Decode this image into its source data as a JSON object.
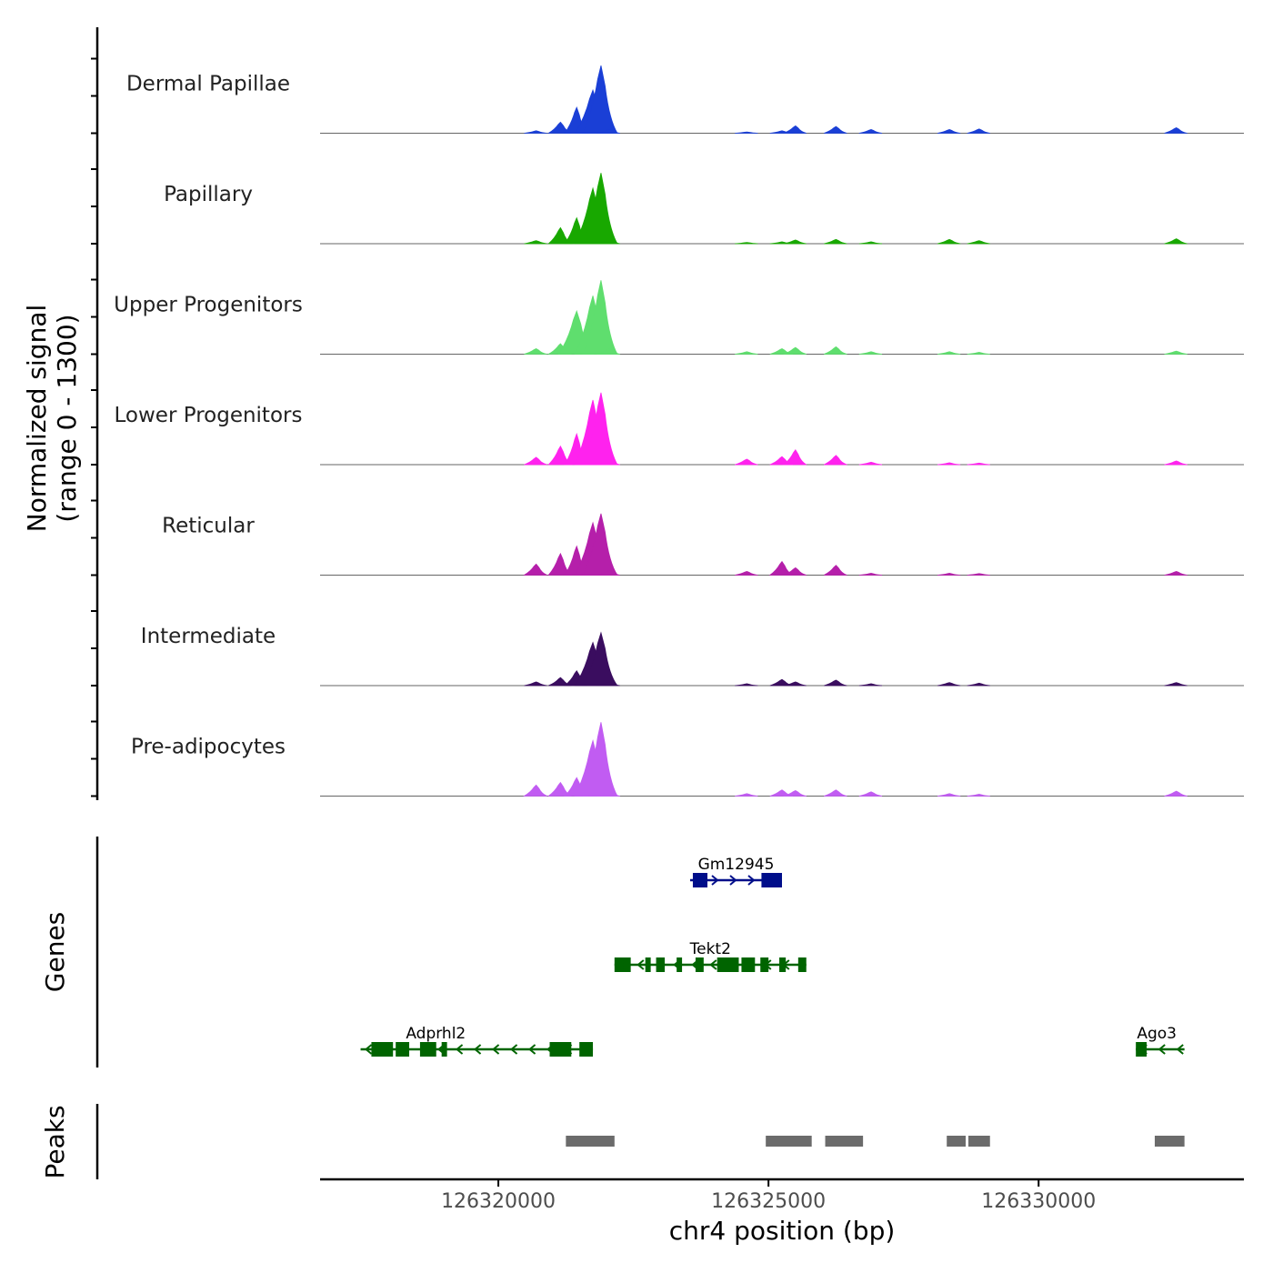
{
  "chart_data": {
    "type": "area",
    "title": "",
    "ylabel": "Normalized signal",
    "ylabel_range": "(range 0 - 1300)",
    "ylim": [
      0,
      1300
    ],
    "xlabel": "chr4 position (bp)",
    "xlim": [
      126316700,
      126333800
    ],
    "x_ticks": [
      126320000,
      126325000,
      126330000
    ],
    "x_tick_labels": [
      "126320000",
      "126325000",
      "126330000"
    ],
    "peak_centers": [
      126320700,
      126321150,
      126321450,
      126321750,
      126321900,
      126322050,
      126324600,
      126325250,
      126325500,
      126326250,
      126326900,
      126328350,
      126328900,
      126332550
    ],
    "tracks": [
      {
        "name": "Dermal Papillae",
        "color": "#1a3fd6",
        "heights": [
          40,
          180,
          420,
          700,
          1100,
          60,
          20,
          40,
          120,
          110,
          60,
          60,
          70,
          90
        ]
      },
      {
        "name": "Papillary",
        "color": "#18a800",
        "heights": [
          50,
          260,
          420,
          900,
          1150,
          80,
          20,
          30,
          60,
          70,
          30,
          70,
          50,
          80
        ]
      },
      {
        "name": "Upper Progenitors",
        "color": "#5fde6e",
        "heights": [
          90,
          170,
          700,
          950,
          1200,
          90,
          40,
          90,
          110,
          120,
          40,
          40,
          30,
          50
        ]
      },
      {
        "name": "Lower Progenitors",
        "color": "#ff22ee",
        "heights": [
          120,
          300,
          500,
          1050,
          1170,
          80,
          90,
          130,
          240,
          150,
          40,
          30,
          25,
          60
        ]
      },
      {
        "name": "Reticular",
        "color": "#b51faa",
        "heights": [
          180,
          350,
          470,
          850,
          1000,
          70,
          60,
          220,
          120,
          160,
          30,
          30,
          25,
          60
        ]
      },
      {
        "name": "Intermediate",
        "color": "#3a0d5f",
        "heights": [
          60,
          130,
          240,
          700,
          860,
          60,
          30,
          100,
          60,
          90,
          30,
          50,
          40,
          50
        ]
      },
      {
        "name": "Pre-adipocytes",
        "color": "#c15cf2",
        "heights": [
          180,
          220,
          300,
          900,
          1200,
          80,
          40,
          100,
          90,
          100,
          70,
          40,
          30,
          80
        ]
      }
    ],
    "genes": [
      {
        "name": "Gm12945",
        "strand": "+",
        "start": 126323550,
        "end": 126325250,
        "color": "#000e8a",
        "exons": [
          [
            126323600,
            126323870
          ],
          [
            126324870,
            126325250
          ]
        ]
      },
      {
        "name": "Tekt2",
        "strand": "-",
        "start": 126322150,
        "end": 126325700,
        "color": "#006400",
        "exons": [
          [
            126322150,
            126322450
          ],
          [
            126322720,
            126322820
          ],
          [
            126322920,
            126323080
          ],
          [
            126323300,
            126323400
          ],
          [
            126323650,
            126323800
          ],
          [
            126324050,
            126324450
          ],
          [
            126324500,
            126324750
          ],
          [
            126324850,
            126325000
          ],
          [
            126325200,
            126325320
          ],
          [
            126325550,
            126325700
          ]
        ]
      },
      {
        "name": "Adprhl2",
        "strand": "-",
        "start": 126317450,
        "end": 126321750,
        "color": "#006400",
        "exons": [
          [
            126317650,
            126318050
          ],
          [
            126318100,
            126318350
          ],
          [
            126318550,
            126318850
          ],
          [
            126318950,
            126319050
          ],
          [
            126320950,
            126321350
          ],
          [
            126321500,
            126321750
          ]
        ]
      },
      {
        "name": "Ago3",
        "strand": "-",
        "start": 126331800,
        "end": 126332700,
        "color": "#006400",
        "exons": [
          [
            126331800,
            126332000
          ]
        ]
      }
    ],
    "peaks": [
      [
        126321250,
        126322150
      ],
      [
        126324950,
        126325800
      ],
      [
        126326050,
        126326750
      ],
      [
        126328300,
        126328650
      ],
      [
        126328700,
        126329100
      ],
      [
        126332150,
        126332700
      ]
    ],
    "panel_titles": {
      "genes": "Genes",
      "peaks": "Peaks"
    }
  }
}
